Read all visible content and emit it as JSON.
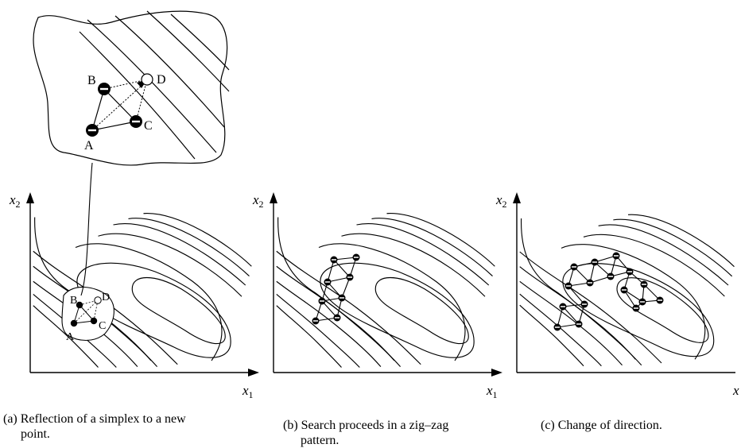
{
  "axes": {
    "x_label": "x",
    "x_sub": "1",
    "y_label": "x",
    "y_sub": "2"
  },
  "points": {
    "a": "A",
    "b": "B",
    "c": "C",
    "d": "D"
  },
  "panels": [
    {
      "id": "a",
      "caption_line1": "(a)  Reflection of a simplex to a new",
      "caption_line2": "point."
    },
    {
      "id": "b",
      "caption_line1": "(b)  Search proceeds in a zig–zag",
      "caption_line2": "pattern."
    },
    {
      "id": "c",
      "caption_line1": "(c)  Change of direction.",
      "caption_line2": ""
    }
  ]
}
